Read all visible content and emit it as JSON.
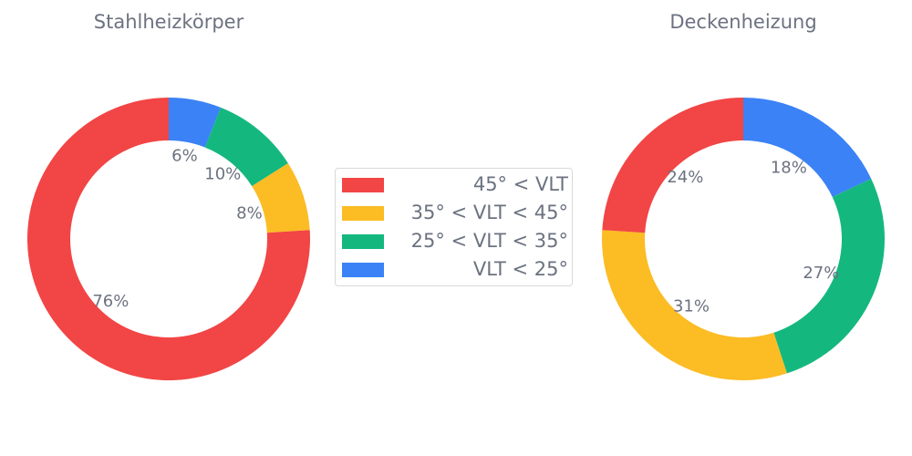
{
  "chart_data": [
    {
      "type": "pie",
      "donut": true,
      "title": "Stahlheizkörper",
      "categories": [
        "VLT < 25°",
        "25° < VLT < 35°",
        "35° < VLT < 45°",
        "45° < VLT"
      ],
      "values": [
        6,
        10,
        8,
        76
      ],
      "labels": [
        "6%",
        "10%",
        "8%",
        "76%"
      ],
      "colors": [
        "#3b82f6",
        "#14b87f",
        "#fbbc24",
        "#f24545"
      ]
    },
    {
      "type": "pie",
      "donut": true,
      "title": "Deckenheizung",
      "categories": [
        "VLT < 25°",
        "25° < VLT < 35°",
        "35° < VLT < 45°",
        "45° < VLT"
      ],
      "values": [
        18,
        27,
        31,
        24
      ],
      "labels": [
        "18%",
        "27%",
        "31%",
        "24%"
      ],
      "colors": [
        "#3b82f6",
        "#14b87f",
        "#fbbc24",
        "#f24545"
      ]
    }
  ],
  "legend": {
    "placement": "center",
    "items": [
      {
        "label": "45° < VLT",
        "color": "#f24545"
      },
      {
        "label": "35° < VLT < 45°",
        "color": "#fbbc24"
      },
      {
        "label": "25° < VLT < 35°",
        "color": "#14b87f"
      },
      {
        "label": "VLT < 25°",
        "color": "#3b82f6"
      }
    ]
  }
}
